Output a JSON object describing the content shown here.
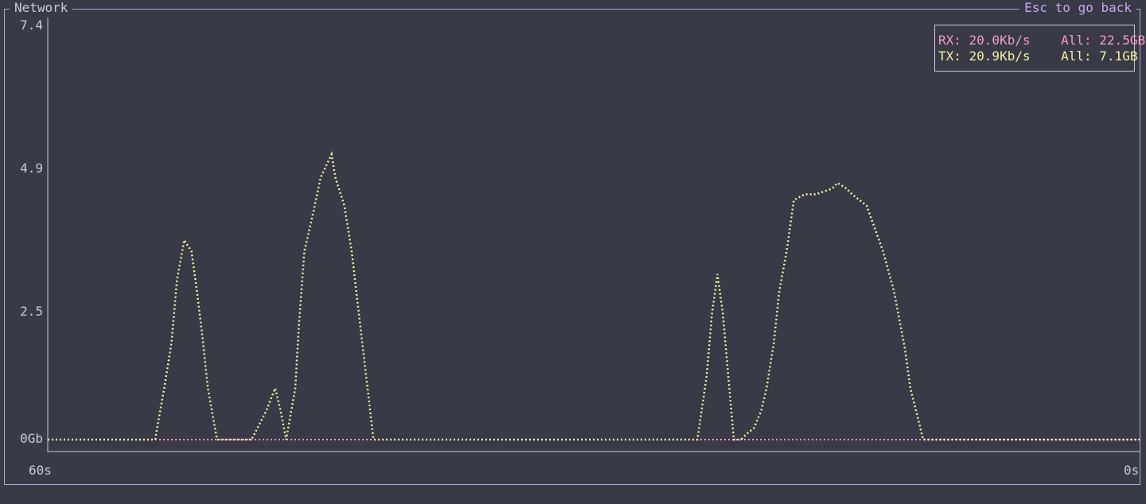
{
  "window": {
    "title": "Network",
    "back_hint": "Esc to go back"
  },
  "legend": {
    "rx_rate": "RX: 20.0Kb/s",
    "rx_total": "All: 22.5GB",
    "tx_rate": "TX: 20.9Kb/s",
    "tx_total": "All: 7.1GB"
  },
  "colors": {
    "background": "#383a45",
    "border": "#b7a3d8",
    "rx": "#f59ac8",
    "tx": "#f0f0a0",
    "axis": "#c9cbd4"
  },
  "chart_data": {
    "type": "line",
    "title": "",
    "y_tick_labels": [
      "7.4",
      "4.9",
      "2.5",
      "0Gb"
    ],
    "x_tick_labels": [
      "60s",
      "0s"
    ],
    "ylim": [
      0,
      7.4
    ],
    "xlim": [
      60,
      0
    ],
    "series": [
      {
        "name": "RX",
        "x": [
          60,
          0
        ],
        "values": [
          0,
          0
        ]
      },
      {
        "name": "TX",
        "x": [
          60,
          54.1,
          53.6,
          53.2,
          52.9,
          52.5,
          52.1,
          51.8,
          51.5,
          51.2,
          50.7,
          48.8,
          48.0,
          47.5,
          47.2,
          46.9,
          46.4,
          46.2,
          45.9,
          45.4,
          45.0,
          44.4,
          44.2,
          43.7,
          43.3,
          42.9,
          42.5,
          42.1,
          41.3,
          40.8,
          38.0,
          24.3,
          23.8,
          23.5,
          23.2,
          22.9,
          22.6,
          22.3,
          21.9,
          21.6,
          21.2,
          20.8,
          20.5,
          20.1,
          19.8,
          19.4,
          19.0,
          18.4,
          17.8,
          16.9,
          16.6,
          16.1,
          15.8,
          15.4,
          15.0,
          14.1,
          13.5,
          12.9,
          12.6,
          12.2,
          11.9,
          11.5,
          11.1,
          10.8,
          10.2,
          9.3,
          0
        ]
      }
    ],
    "tx_values": [
      0,
      0,
      0.9,
      1.7,
      2.8,
      3.5,
      3.3,
      2.6,
      1.8,
      0.9,
      0,
      0,
      0.5,
      0.9,
      0.5,
      0,
      0.9,
      2.0,
      3.3,
      4.0,
      4.6,
      5.0,
      4.6,
      4.1,
      3.3,
      2.2,
      1.1,
      0,
      0,
      0,
      0,
      0,
      1.1,
      2.2,
      2.9,
      2.2,
      1.1,
      0,
      0,
      0.1,
      0.2,
      0.5,
      0.9,
      1.7,
      2.6,
      3.3,
      4.2,
      4.3,
      4.3,
      4.4,
      4.5,
      4.4,
      4.3,
      4.2,
      4.1,
      3.3,
      2.6,
      1.6,
      0.9,
      0.4,
      0,
      0,
      0,
      0,
      0,
      0,
      0
    ],
    "grid": false,
    "legend_position": "top-right"
  }
}
